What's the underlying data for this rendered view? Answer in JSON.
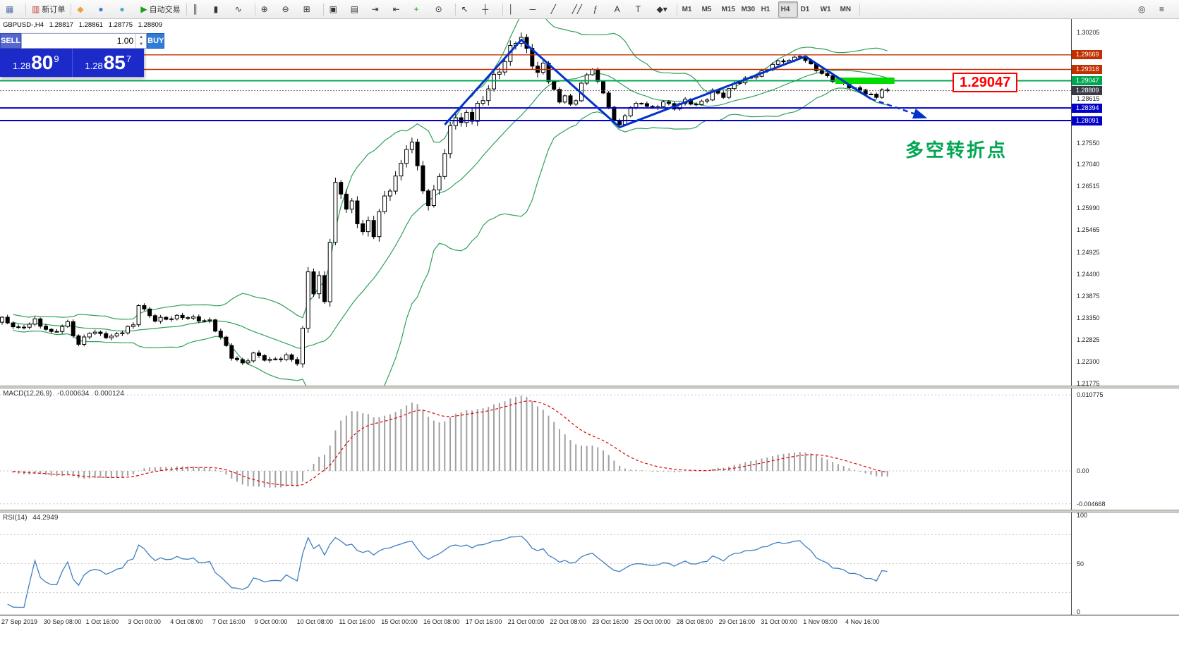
{
  "toolbar": {
    "groups": [
      {
        "name": "window",
        "items": [
          {
            "name": "chart-window-icon",
            "glyph": "▦",
            "color": "#4A6FA5"
          }
        ]
      },
      {
        "name": "order",
        "items": [
          {
            "name": "new-order-button",
            "glyph": "▥",
            "color": "#C23B3B",
            "label": "新订单"
          }
        ]
      },
      {
        "name": "services",
        "items": [
          {
            "name": "broadcast-icon",
            "glyph": "◆",
            "color": "#E8A33D"
          },
          {
            "name": "community-icon",
            "glyph": "●",
            "color": "#3B7CD4"
          },
          {
            "name": "market-icon",
            "glyph": "●",
            "color": "#49A8C9"
          },
          {
            "name": "autotrading-button",
            "glyph": "▶",
            "color": "#18A018",
            "label": "自动交易"
          }
        ]
      },
      {
        "name": "chart-type",
        "items": [
          {
            "name": "bar-chart-icon",
            "glyph": "║"
          },
          {
            "name": "candlestick-chart-icon",
            "glyph": "▮"
          },
          {
            "name": "line-chart-icon",
            "glyph": "∿"
          }
        ]
      },
      {
        "name": "zoom",
        "items": [
          {
            "name": "zoom-in-icon",
            "glyph": "⊕"
          },
          {
            "name": "zoom-out-icon",
            "glyph": "⊖"
          },
          {
            "name": "tile-windows-icon",
            "glyph": "⊞"
          }
        ]
      },
      {
        "name": "chart-tools",
        "items": [
          {
            "name": "new-chart-icon",
            "glyph": "▣"
          },
          {
            "name": "profiles-icon",
            "glyph": "▤"
          },
          {
            "name": "auto-scroll-icon",
            "glyph": "⇥"
          },
          {
            "name": "chart-shift-icon",
            "glyph": "⇤"
          },
          {
            "name": "indicators-icon",
            "glyph": "+",
            "color": "#18A018"
          },
          {
            "name": "periods-icon",
            "glyph": "⊙"
          }
        ]
      },
      {
        "name": "pointer",
        "items": [
          {
            "name": "cursor-icon",
            "glyph": "↖"
          },
          {
            "name": "crosshair-icon",
            "glyph": "┼"
          }
        ]
      },
      {
        "name": "line-studies",
        "items": [
          {
            "name": "vertical-line-icon",
            "glyph": "│"
          },
          {
            "name": "horizontal-line-icon",
            "glyph": "─"
          },
          {
            "name": "trendline-icon",
            "glyph": "╱"
          },
          {
            "name": "channel-icon",
            "glyph": "╱╱"
          },
          {
            "name": "fibonacci-icon",
            "glyph": "ƒ"
          },
          {
            "name": "text-icon",
            "glyph": "A"
          },
          {
            "name": "label-icon",
            "glyph": "T"
          },
          {
            "name": "shapes-icon",
            "glyph": "◆▾"
          }
        ]
      },
      {
        "name": "timeframes",
        "items": [
          {
            "name": "timeframe-m1",
            "label": "M1"
          },
          {
            "name": "timeframe-m5",
            "label": "M5"
          },
          {
            "name": "timeframe-m15",
            "label": "M15"
          },
          {
            "name": "timeframe-m30",
            "label": "M30"
          },
          {
            "name": "timeframe-h1",
            "label": "H1"
          },
          {
            "name": "timeframe-h4",
            "label": "H4",
            "active": true
          },
          {
            "name": "timeframe-d1",
            "label": "D1"
          },
          {
            "name": "timeframe-w1",
            "label": "W1"
          },
          {
            "name": "timeframe-mn",
            "label": "MN"
          }
        ]
      },
      {
        "name": "right",
        "align": "right",
        "no_sep": true,
        "items": [
          {
            "name": "search-icon",
            "glyph": "◎"
          },
          {
            "name": "menu-icon",
            "glyph": "≡"
          }
        ]
      }
    ]
  },
  "trade_panel": {
    "sell_label": "SELL",
    "buy_label": "BUY",
    "volume": "1.00",
    "sell_price_prefix": "1.28",
    "sell_price_big": "80",
    "sell_price_sup": "9",
    "buy_price_prefix": "1.28",
    "buy_price_big": "85",
    "buy_price_sup": "7"
  },
  "chart_data": {
    "type": "candlestick",
    "title": "GBPUSD-,H4",
    "ohlc_header": {
      "symbol": "GBPUSD-,H4",
      "open": "1.28817",
      "high": "1.28861",
      "low": "1.28775",
      "close": "1.28809"
    },
    "x_axis": {
      "labels": [
        "27 Sep 2019",
        "30 Sep 08:00",
        "1 Oct 16:00",
        "3 Oct 00:00",
        "4 Oct 08:00",
        "7 Oct 16:00",
        "9 Oct 00:00",
        "10 Oct 08:00",
        "11 Oct 16:00",
        "15 Oct 00:00",
        "16 Oct 08:00",
        "17 Oct 16:00",
        "21 Oct 00:00",
        "22 Oct 08:00",
        "23 Oct 16:00",
        "25 Oct 00:00",
        "28 Oct 08:00",
        "29 Oct 16:00",
        "31 Oct 00:00",
        "1 Nov 08:00",
        "4 Nov 16:00"
      ],
      "label_spacing_px": 59.8,
      "candles_per_label": 8
    },
    "y_axis": {
      "pmin": 1.2172,
      "pmax": 1.3053,
      "plain_labels": [
        {
          "text": "1.30205",
          "value": 1.30205
        },
        {
          "text": "1.28615",
          "value": 1.28615
        },
        {
          "text": "1.27550",
          "value": 1.2755
        },
        {
          "text": "1.27040",
          "value": 1.2704
        },
        {
          "text": "1.26515",
          "value": 1.26515
        },
        {
          "text": "1.25990",
          "value": 1.2599
        },
        {
          "text": "1.25465",
          "value": 1.25465
        },
        {
          "text": "1.24925",
          "value": 1.24925
        },
        {
          "text": "1.24400",
          "value": 1.244
        },
        {
          "text": "1.23875",
          "value": 1.23875
        },
        {
          "text": "1.23350",
          "value": 1.2335
        },
        {
          "text": "1.22825",
          "value": 1.22825
        },
        {
          "text": "1.22300",
          "value": 1.223
        },
        {
          "text": "1.21775",
          "value": 1.21775
        }
      ]
    },
    "candles": {
      "count": 163,
      "close_anchors": [
        [
          0,
          1.2332
        ],
        [
          3,
          1.2308
        ],
        [
          6,
          1.2328
        ],
        [
          9,
          1.2298
        ],
        [
          12,
          1.2322
        ],
        [
          14,
          1.227
        ],
        [
          16,
          1.2302
        ],
        [
          20,
          1.2288
        ],
        [
          24,
          1.2318
        ],
        [
          25,
          1.2368
        ],
        [
          26,
          1.2352
        ],
        [
          28,
          1.233
        ],
        [
          33,
          1.2338
        ],
        [
          38,
          1.2326
        ],
        [
          40,
          1.2288
        ],
        [
          42,
          1.2242
        ],
        [
          44,
          1.2224
        ],
        [
          46,
          1.2248
        ],
        [
          49,
          1.2232
        ],
        [
          52,
          1.2242
        ],
        [
          54,
          1.2228
        ],
        [
          55,
          1.2302
        ],
        [
          56,
          1.2448
        ],
        [
          57,
          1.2398
        ],
        [
          58,
          1.2428
        ],
        [
          59,
          1.2378
        ],
        [
          60,
          1.252
        ],
        [
          61,
          1.2652
        ],
        [
          62,
          1.2638
        ],
        [
          63,
          1.2598
        ],
        [
          64,
          1.2608
        ],
        [
          65,
          1.2568
        ],
        [
          66,
          1.2542
        ],
        [
          67,
          1.2562
        ],
        [
          68,
          1.2538
        ],
        [
          69,
          1.2588
        ],
        [
          70,
          1.2622
        ],
        [
          71,
          1.2648
        ],
        [
          72,
          1.2672
        ],
        [
          73,
          1.2702
        ],
        [
          74,
          1.2748
        ],
        [
          75,
          1.2752
        ],
        [
          76,
          1.2698
        ],
        [
          77,
          1.2648
        ],
        [
          78,
          1.2598
        ],
        [
          79,
          1.2642
        ],
        [
          80,
          1.2682
        ],
        [
          81,
          1.2722
        ],
        [
          82,
          1.2798
        ],
        [
          83,
          1.2822
        ],
        [
          84,
          1.2796
        ],
        [
          85,
          1.2832
        ],
        [
          86,
          1.2812
        ],
        [
          87,
          1.2842
        ],
        [
          88,
          1.2862
        ],
        [
          89,
          1.2888
        ],
        [
          90,
          1.2912
        ],
        [
          91,
          1.2932
        ],
        [
          92,
          1.2952
        ],
        [
          93,
          1.2982
        ],
        [
          94,
          1.3002
        ],
        [
          95,
          1.3008
        ],
        [
          96,
          1.2976
        ],
        [
          97,
          1.2948
        ],
        [
          98,
          1.2922
        ],
        [
          99,
          1.2942
        ],
        [
          100,
          1.2906
        ],
        [
          101,
          1.2882
        ],
        [
          102,
          1.2852
        ],
        [
          103,
          1.2872
        ],
        [
          104,
          1.2846
        ],
        [
          105,
          1.2856
        ],
        [
          106,
          1.2902
        ],
        [
          107,
          1.2916
        ],
        [
          108,
          1.2932
        ],
        [
          109,
          1.2906
        ],
        [
          110,
          1.2872
        ],
        [
          111,
          1.2842
        ],
        [
          112,
          1.2812
        ],
        [
          113,
          1.2796
        ],
        [
          114,
          1.2822
        ],
        [
          115,
          1.2842
        ],
        [
          117,
          1.2852
        ],
        [
          119,
          1.2836
        ],
        [
          121,
          1.2854
        ],
        [
          123,
          1.284
        ],
        [
          125,
          1.2858
        ],
        [
          127,
          1.2846
        ],
        [
          129,
          1.2862
        ],
        [
          130,
          1.288
        ],
        [
          132,
          1.2868
        ],
        [
          134,
          1.2898
        ],
        [
          136,
          1.2908
        ],
        [
          138,
          1.2918
        ],
        [
          140,
          1.2932
        ],
        [
          141,
          1.2946
        ],
        [
          143,
          1.2952
        ],
        [
          145,
          1.2958
        ],
        [
          146,
          1.2966
        ],
        [
          148,
          1.2942
        ],
        [
          150,
          1.2922
        ],
        [
          152,
          1.2906
        ],
        [
          154,
          1.2896
        ],
        [
          156,
          1.2886
        ],
        [
          158,
          1.2876
        ],
        [
          160,
          1.2864
        ],
        [
          161,
          1.2886
        ],
        [
          162,
          1.28809
        ]
      ]
    },
    "overlays": {
      "bollinger": {
        "period": 20,
        "deviation": 2,
        "color": "#2FA05A"
      },
      "levels": [
        {
          "value": 1.29669,
          "label": "1.29669",
          "color": "#C03000",
          "width": 1.4
        },
        {
          "value": 1.29318,
          "label": "1.29318",
          "color": "#C03000",
          "width": 1.4
        },
        {
          "value": 1.29047,
          "label": "1.29047",
          "color": "#00A651",
          "width": 2
        },
        {
          "value": 1.28394,
          "label": "1.28394",
          "color": "#0000C8",
          "width": 2
        },
        {
          "value": 1.28091,
          "label": "1.28091",
          "color": "#0000C8",
          "width": 2
        }
      ],
      "current_bid": {
        "value": 1.28809,
        "label": "1.28809",
        "color": "#3A3A46"
      },
      "highlight_zone": {
        "value": 1.29047,
        "from_index": 152.5,
        "to_index": 163.3,
        "color": "#00DC00"
      },
      "zigzag": {
        "color": "#0033CC",
        "points": [
          [
            81,
            1.2799
          ],
          [
            95,
            1.3003
          ],
          [
            113,
            1.2793
          ],
          [
            147,
            1.2963
          ],
          [
            159,
            1.2861
          ]
        ],
        "arrow_end": [
          169,
          1.2816
        ]
      },
      "annotation_text": "多空转折点",
      "price_callout": "1.29047"
    },
    "macd": {
      "label": "MACD(12,26,9)",
      "value_main": "-0.000634",
      "value_signal": "0.000124",
      "fast": 12,
      "slow": 26,
      "signal": 9,
      "histogram_color": "#A0A0A0",
      "signal_color": "#E00000",
      "scale": [
        {
          "text": "0.010775",
          "value": 0.010775
        },
        {
          "text": "0.00",
          "value": 0
        },
        {
          "text": "-0.004668",
          "value": -0.004668
        }
      ]
    },
    "rsi": {
      "label": "RSI(14)",
      "period": 14,
      "value": "44.2949",
      "color": "#3E7FC1",
      "levels": [
        80,
        50,
        20
      ],
      "scale": [
        {
          "text": "100",
          "value": 100
        },
        {
          "text": "50",
          "value": 50
        },
        {
          "text": "0",
          "value": 0
        }
      ]
    }
  }
}
